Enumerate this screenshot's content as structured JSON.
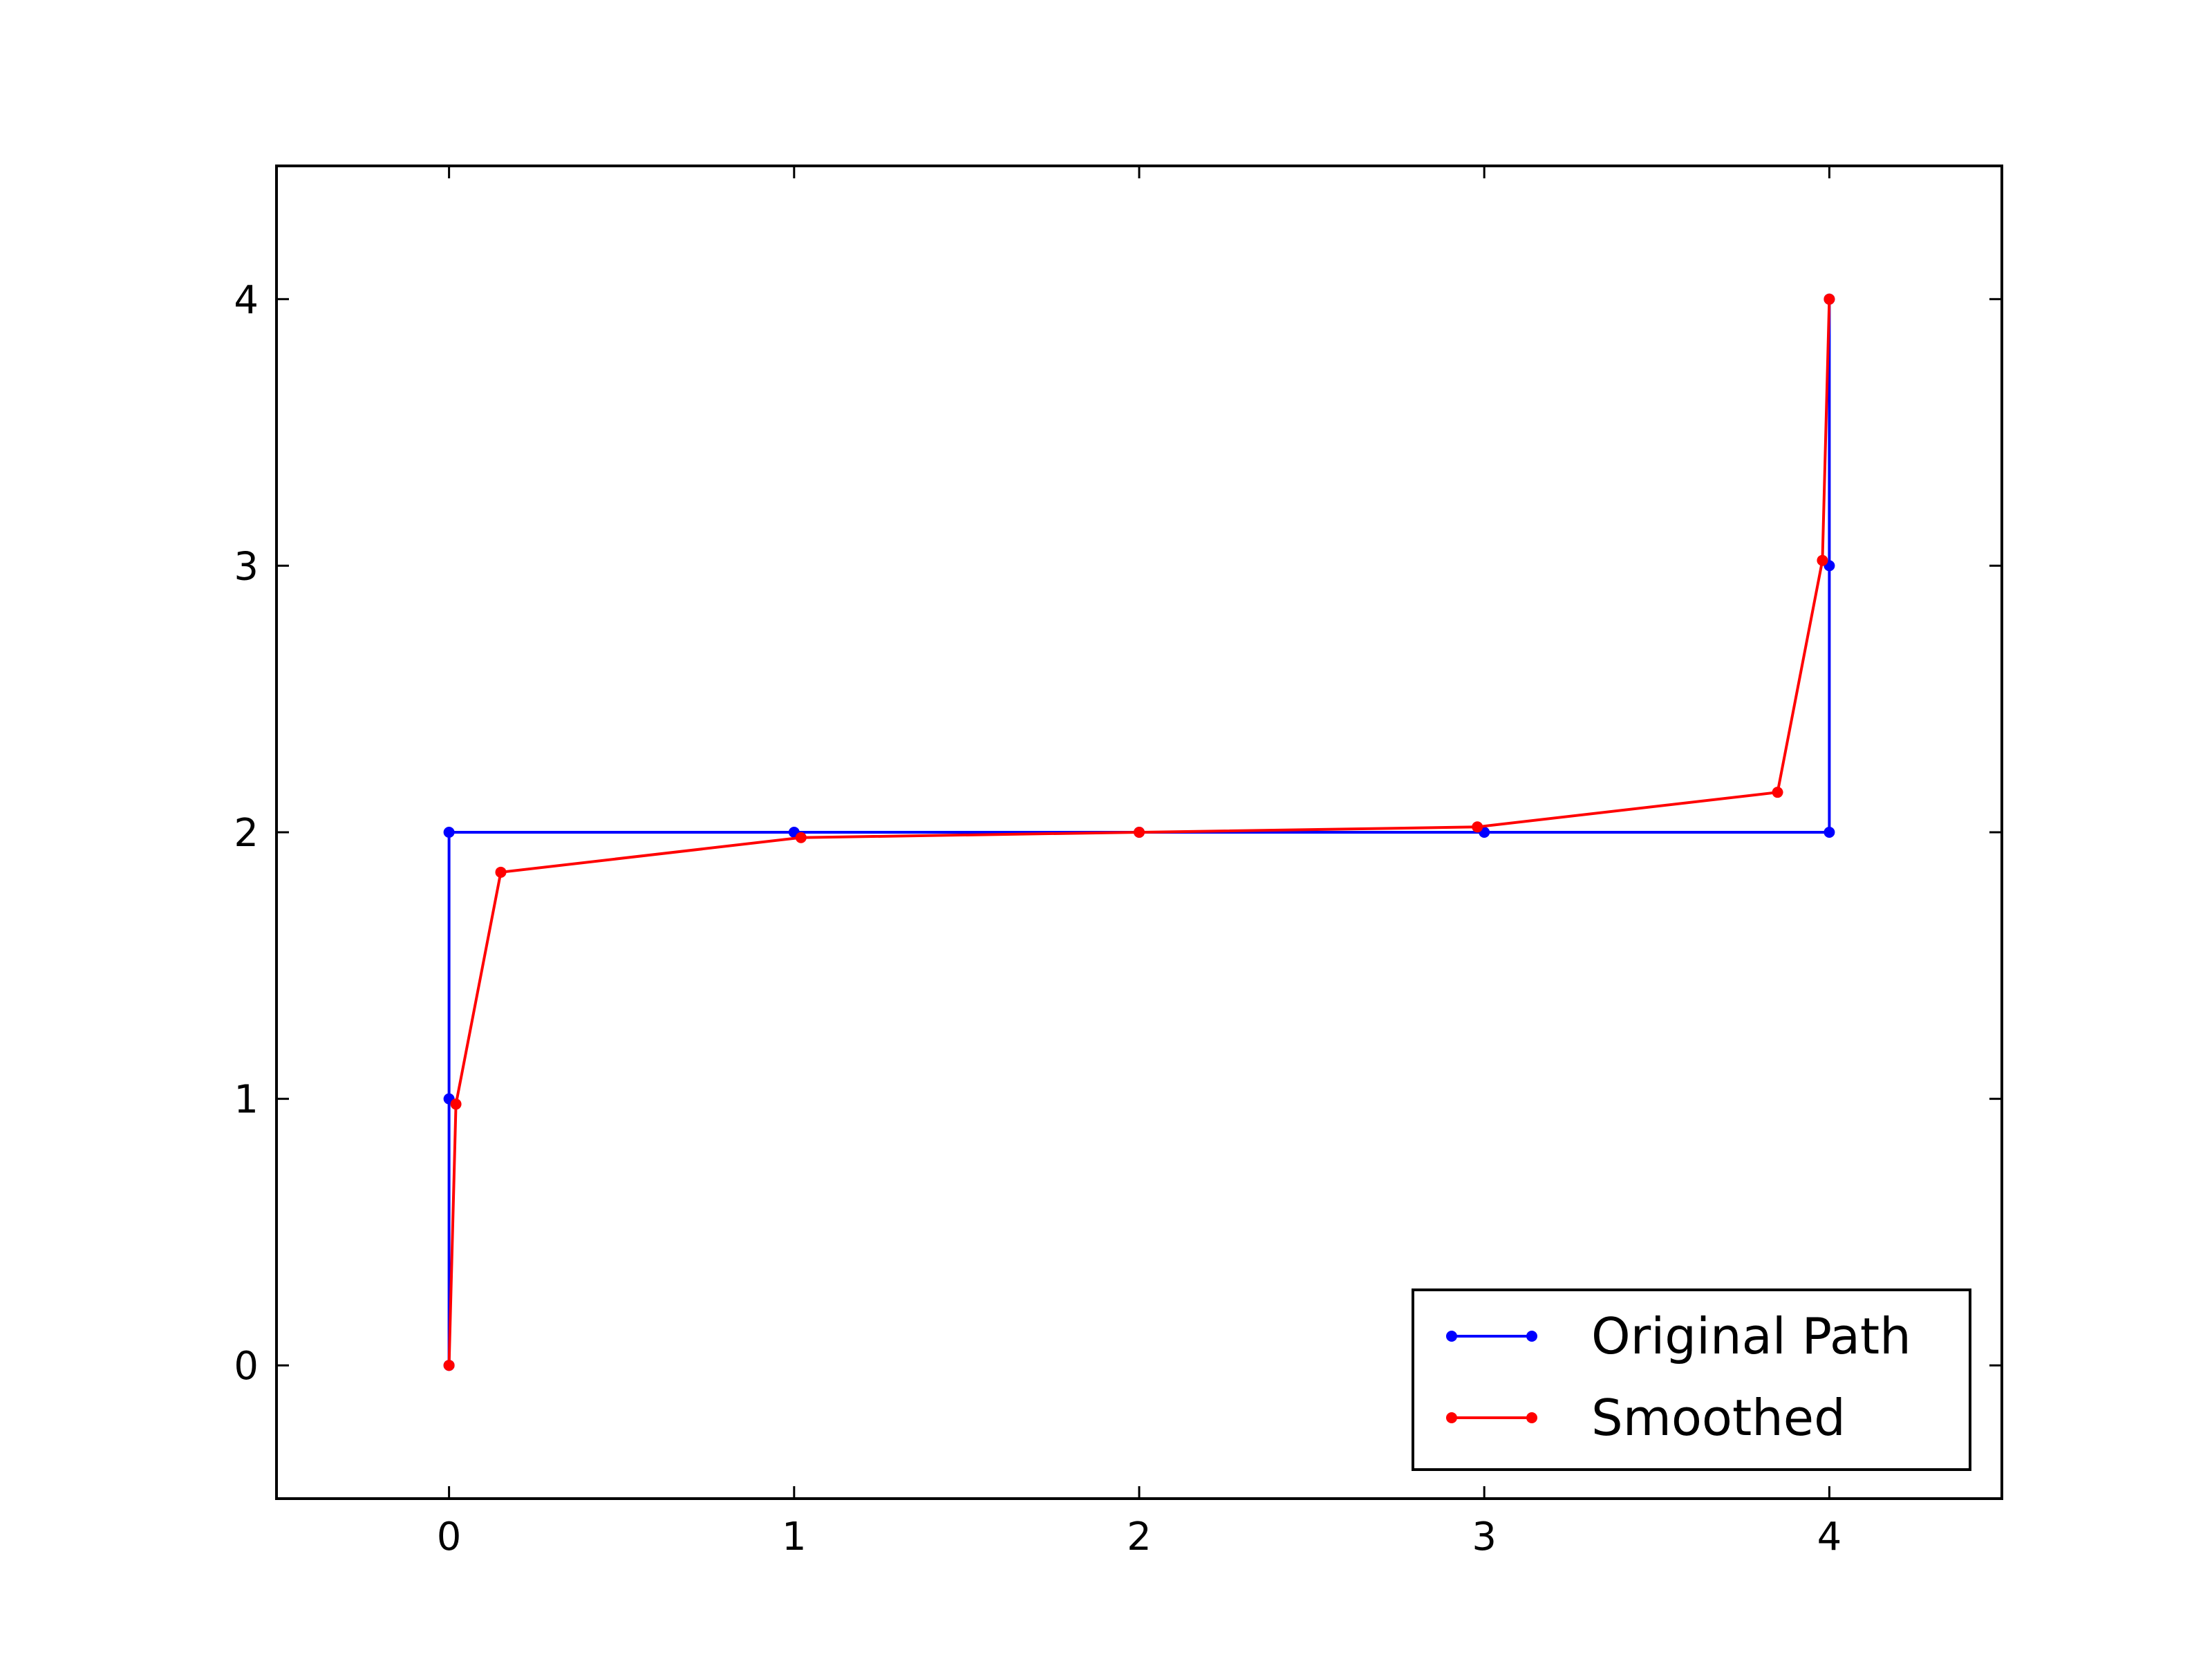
{
  "chart_data": {
    "type": "line",
    "title": "",
    "xlabel": "",
    "ylabel": "",
    "xlim": [
      -0.5,
      4.5
    ],
    "ylim": [
      -0.5,
      4.5
    ],
    "x_ticks": [
      0,
      1,
      2,
      3,
      4
    ],
    "y_ticks": [
      0,
      1,
      2,
      3,
      4
    ],
    "x_tick_labels": [
      "0",
      "1",
      "2",
      "3",
      "4"
    ],
    "y_tick_labels": [
      "0",
      "1",
      "2",
      "3",
      "4"
    ],
    "grid": false,
    "legend_position": "lower-right",
    "series": [
      {
        "name": "Original Path",
        "color": "#0000ff",
        "marker": "point",
        "x": [
          0,
          0,
          0,
          1,
          2,
          3,
          4,
          4,
          4
        ],
        "y": [
          0,
          1,
          2,
          2,
          2,
          2,
          2,
          3,
          4
        ]
      },
      {
        "name": "Smoothed",
        "color": "#ff0000",
        "marker": "point",
        "x": [
          0,
          0.02,
          0.15,
          1.02,
          2,
          2.98,
          3.85,
          3.98,
          4
        ],
        "y": [
          0,
          0.98,
          1.85,
          1.98,
          2,
          2.02,
          2.15,
          3.02,
          4
        ]
      }
    ]
  }
}
